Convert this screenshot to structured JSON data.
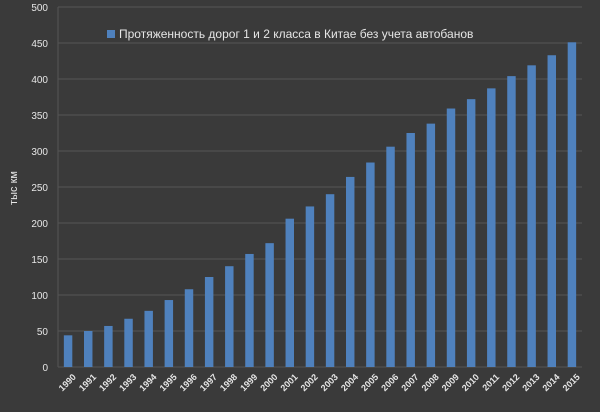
{
  "chart_data": {
    "type": "bar",
    "title": "",
    "xlabel": "",
    "ylabel": "тыс км",
    "ylim": [
      0,
      500
    ],
    "yticks": [
      0,
      50,
      100,
      150,
      200,
      250,
      300,
      350,
      400,
      450,
      500
    ],
    "grid": true,
    "legend_position": "top",
    "categories": [
      "1990",
      "1991",
      "1992",
      "1993",
      "1994",
      "1995",
      "1996",
      "1997",
      "1998",
      "1999",
      "2000",
      "2001",
      "2002",
      "2003",
      "2004",
      "2005",
      "2006",
      "2007",
      "2008",
      "2009",
      "2010",
      "2011",
      "2012",
      "2013",
      "2014",
      "2015"
    ],
    "series": [
      {
        "name": "Протяженность дорог 1 и 2 класса в Китае без учета автобанов",
        "color": "#4f81bd",
        "values": [
          44,
          50,
          57,
          67,
          78,
          93,
          108,
          125,
          140,
          157,
          172,
          206,
          223,
          240,
          264,
          284,
          306,
          325,
          338,
          359,
          372,
          387,
          404,
          419,
          433,
          451
        ]
      }
    ]
  },
  "colors": {
    "background": "#3a3a3a",
    "grid": "#555555",
    "text": "#e6e6e6"
  }
}
